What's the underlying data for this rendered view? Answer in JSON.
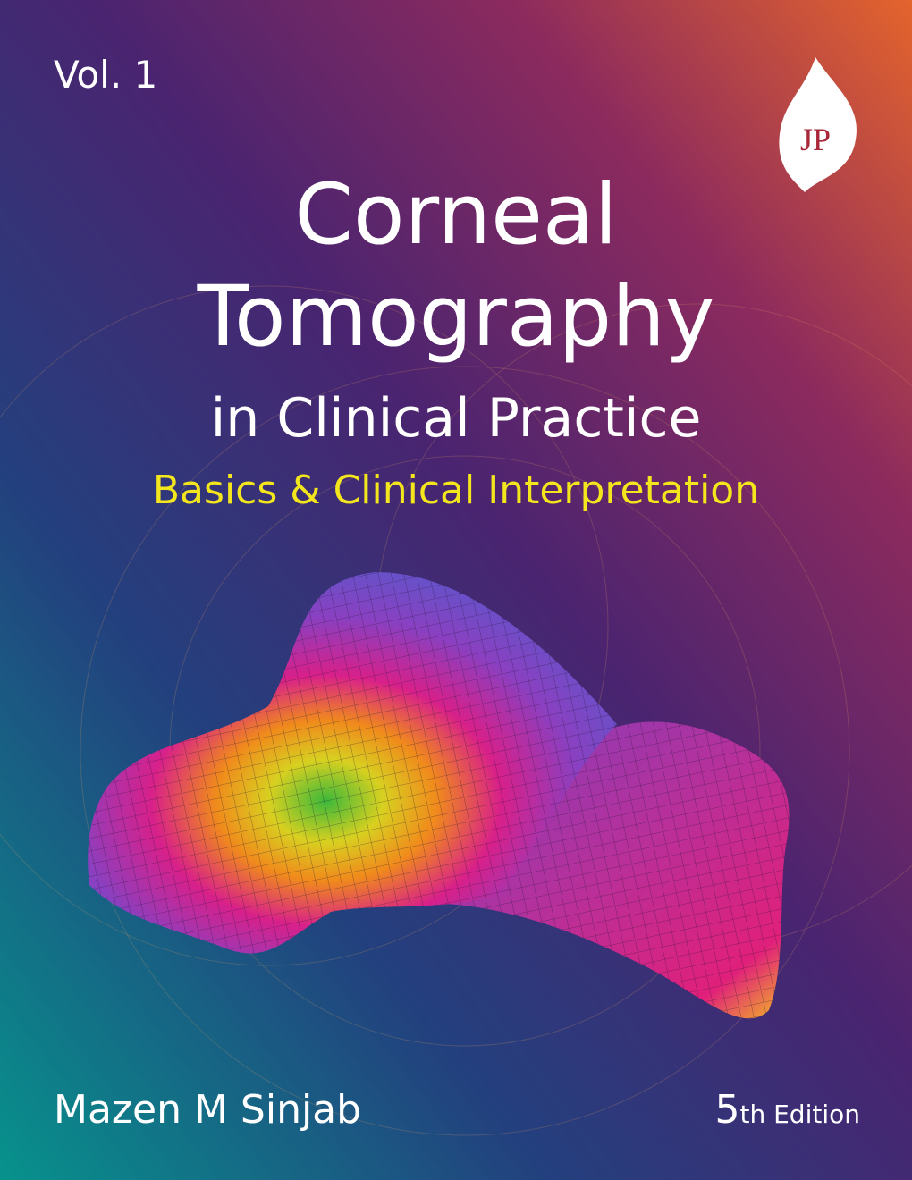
{
  "cover": {
    "volume": "Vol. 1",
    "publisher_logo": "JP",
    "title_lines": [
      "Corneal",
      "Tomography",
      "in Clinical Practice"
    ],
    "subtitle": "Basics & Clinical Interpretation",
    "author": "Mazen M Sinjab",
    "edition": {
      "number": "5",
      "suffix": "th Edition"
    }
  }
}
